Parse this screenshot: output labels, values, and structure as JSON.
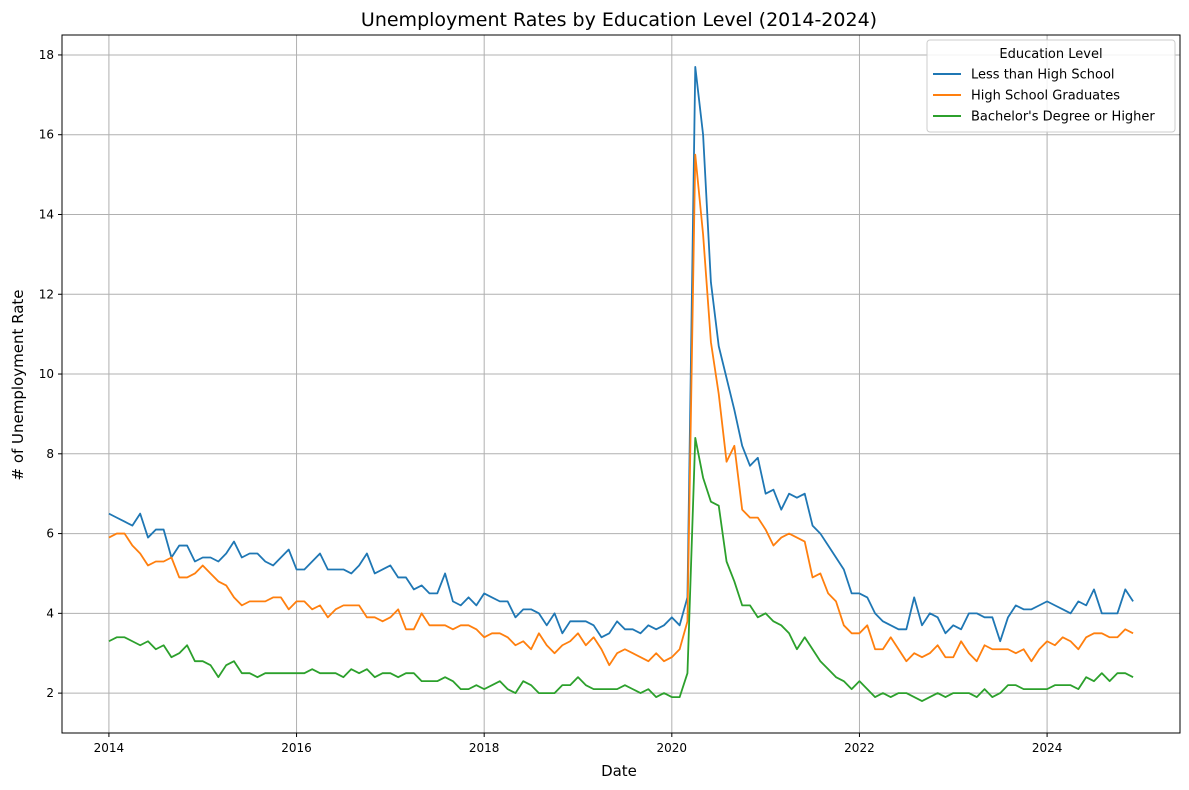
{
  "chart_data": {
    "type": "line",
    "title": "Unemployment Rates by Education Level (2014-2024)",
    "xlabel": "Date",
    "ylabel": "# of Unemployment Rate",
    "x_start": "2014-01",
    "x_end": "2024-12",
    "x_frequency": "monthly",
    "xlim": [
      "2013-07",
      "2025-06"
    ],
    "ylim": [
      1,
      18.5
    ],
    "x_ticks": [
      "2014",
      "2016",
      "2018",
      "2020",
      "2022",
      "2024"
    ],
    "y_ticks": [
      2,
      4,
      6,
      8,
      10,
      12,
      14,
      16,
      18
    ],
    "grid": true,
    "legend": {
      "title": "Education Level",
      "position": "top-right"
    },
    "series": [
      {
        "name": "Less than High School",
        "color": "#1f77b4",
        "values": [
          6.5,
          6.4,
          6.3,
          6.2,
          6.5,
          5.9,
          6.1,
          6.1,
          5.4,
          5.7,
          5.7,
          5.3,
          5.4,
          5.4,
          5.3,
          5.5,
          5.8,
          5.4,
          5.5,
          5.5,
          5.3,
          5.2,
          5.4,
          5.6,
          5.1,
          5.1,
          5.3,
          5.5,
          5.1,
          5.1,
          5.1,
          5.0,
          5.2,
          5.5,
          5.0,
          5.1,
          5.2,
          4.9,
          4.9,
          4.6,
          4.7,
          4.5,
          4.5,
          5.0,
          4.3,
          4.2,
          4.4,
          4.2,
          4.5,
          4.4,
          4.3,
          4.3,
          3.9,
          4.1,
          4.1,
          4.0,
          3.7,
          4.0,
          3.5,
          3.8,
          3.8,
          3.8,
          3.7,
          3.4,
          3.5,
          3.8,
          3.6,
          3.6,
          3.5,
          3.7,
          3.6,
          3.7,
          3.9,
          3.7,
          4.4,
          17.7,
          16.0,
          12.3,
          10.7,
          9.9,
          9.1,
          8.2,
          7.7,
          7.9,
          7.0,
          7.1,
          6.6,
          7.0,
          6.9,
          7.0,
          6.2,
          6.0,
          5.7,
          5.4,
          5.1,
          4.5,
          4.5,
          4.4,
          4.0,
          3.8,
          3.7,
          3.6,
          3.6,
          4.4,
          3.7,
          4.0,
          3.9,
          3.5,
          3.7,
          3.6,
          4.0,
          4.0,
          3.9,
          3.9,
          3.3,
          3.9,
          4.2,
          4.1,
          4.1,
          4.2,
          4.3,
          4.2,
          4.1,
          4.0,
          4.3,
          4.2,
          4.6,
          4.0,
          4.0,
          4.0,
          4.6,
          4.3
        ]
      },
      {
        "name": "High School Graduates",
        "color": "#ff7f0e",
        "values": [
          5.9,
          6.0,
          6.0,
          5.7,
          5.5,
          5.2,
          5.3,
          5.3,
          5.4,
          4.9,
          4.9,
          5.0,
          5.2,
          5.0,
          4.8,
          4.7,
          4.4,
          4.2,
          4.3,
          4.3,
          4.3,
          4.4,
          4.4,
          4.1,
          4.3,
          4.3,
          4.1,
          4.2,
          3.9,
          4.1,
          4.2,
          4.2,
          4.2,
          3.9,
          3.9,
          3.8,
          3.9,
          4.1,
          3.6,
          3.6,
          4.0,
          3.7,
          3.7,
          3.7,
          3.6,
          3.7,
          3.7,
          3.6,
          3.4,
          3.5,
          3.5,
          3.4,
          3.2,
          3.3,
          3.1,
          3.5,
          3.2,
          3.0,
          3.2,
          3.3,
          3.5,
          3.2,
          3.4,
          3.1,
          2.7,
          3.0,
          3.1,
          3.0,
          2.9,
          2.8,
          3.0,
          2.8,
          2.9,
          3.1,
          3.8,
          15.5,
          13.5,
          10.8,
          9.5,
          7.8,
          8.2,
          6.6,
          6.4,
          6.4,
          6.1,
          5.7,
          5.9,
          6.0,
          5.9,
          5.8,
          4.9,
          5.0,
          4.5,
          4.3,
          3.7,
          3.5,
          3.5,
          3.7,
          3.1,
          3.1,
          3.4,
          3.1,
          2.8,
          3.0,
          2.9,
          3.0,
          3.2,
          2.9,
          2.9,
          3.3,
          3.0,
          2.8,
          3.2,
          3.1,
          3.1,
          3.1,
          3.0,
          3.1,
          2.8,
          3.1,
          3.3,
          3.2,
          3.4,
          3.3,
          3.1,
          3.4,
          3.5,
          3.5,
          3.4,
          3.4,
          3.6,
          3.5
        ]
      },
      {
        "name": "Bachelor's Degree or Higher",
        "color": "#2ca02c",
        "values": [
          3.3,
          3.4,
          3.4,
          3.3,
          3.2,
          3.3,
          3.1,
          3.2,
          2.9,
          3.0,
          3.2,
          2.8,
          2.8,
          2.7,
          2.4,
          2.7,
          2.8,
          2.5,
          2.5,
          2.4,
          2.5,
          2.5,
          2.5,
          2.5,
          2.5,
          2.5,
          2.6,
          2.5,
          2.5,
          2.5,
          2.4,
          2.6,
          2.5,
          2.6,
          2.4,
          2.5,
          2.5,
          2.4,
          2.5,
          2.5,
          2.3,
          2.3,
          2.3,
          2.4,
          2.3,
          2.1,
          2.1,
          2.2,
          2.1,
          2.2,
          2.3,
          2.1,
          2.0,
          2.3,
          2.2,
          2.0,
          2.0,
          2.0,
          2.2,
          2.2,
          2.4,
          2.2,
          2.1,
          2.1,
          2.1,
          2.1,
          2.2,
          2.1,
          2.0,
          2.1,
          1.9,
          2.0,
          1.9,
          1.9,
          2.5,
          8.4,
          7.4,
          6.8,
          6.7,
          5.3,
          4.8,
          4.2,
          4.2,
          3.9,
          4.0,
          3.8,
          3.7,
          3.5,
          3.1,
          3.4,
          3.1,
          2.8,
          2.6,
          2.4,
          2.3,
          2.1,
          2.3,
          2.1,
          1.9,
          2.0,
          1.9,
          2.0,
          2.0,
          1.9,
          1.8,
          1.9,
          2.0,
          1.9,
          2.0,
          2.0,
          2.0,
          1.9,
          2.1,
          1.9,
          2.0,
          2.2,
          2.2,
          2.1,
          2.1,
          2.1,
          2.1,
          2.2,
          2.2,
          2.2,
          2.1,
          2.4,
          2.3,
          2.5,
          2.3,
          2.5,
          2.5,
          2.4
        ]
      }
    ]
  }
}
